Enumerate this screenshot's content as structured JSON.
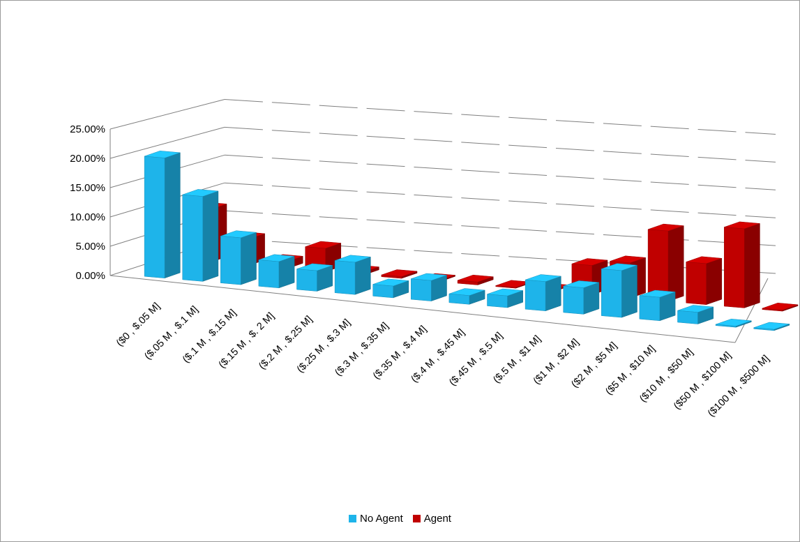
{
  "chart_data": {
    "type": "bar",
    "chart_style": "3D clustered columns",
    "title": "",
    "xlabel": "",
    "ylabel": "",
    "ylim": [
      0,
      0.25
    ],
    "y_tick_labels": [
      "0.00%",
      "5.00%",
      "10.00%",
      "15.00%",
      "20.00%",
      "25.00%"
    ],
    "grid": true,
    "legend_position": "bottom",
    "categories": [
      "($0 , $.05 M]",
      "($.05 M , $.1 M]",
      "($.1 M , $.15 M]",
      "($.15 M , $. 2 M]",
      "($.2 M , $.25 M]",
      "($.25 M , $.3 M]",
      "($.3 M , $.35 M]",
      "($.35 M , $.4 M]",
      "($.4 M , $.45 M]",
      "($.45 M , $.5 M]",
      "($.5 M , $1 M]",
      "($1 M , $2 M]",
      "($2 M , $5 M]",
      "($5 M , $10 M]",
      "($10 M , $50 M]",
      "($50 M , $100 M]",
      "($100 M , $500 M]"
    ],
    "series": [
      {
        "name": "No Agent",
        "color": "#1EB4EA",
        "values": [
          0.205,
          0.145,
          0.08,
          0.045,
          0.035,
          0.055,
          0.02,
          0.035,
          0.015,
          0.02,
          0.05,
          0.045,
          0.08,
          0.04,
          0.02,
          0.002,
          0.002
        ]
      },
      {
        "name": "Agent",
        "color": "#C00000",
        "values": [
          0.09,
          0.045,
          0.012,
          0.04,
          0.005,
          0.003,
          0.002,
          0.005,
          0.001,
          0.002,
          0.05,
          0.06,
          0.12,
          0.07,
          0.135,
          0.002,
          0.02
        ]
      }
    ]
  },
  "legend": {
    "items": [
      {
        "label": "No Agent",
        "color": "#1EB4EA"
      },
      {
        "label": "Agent",
        "color": "#C00000"
      }
    ]
  }
}
